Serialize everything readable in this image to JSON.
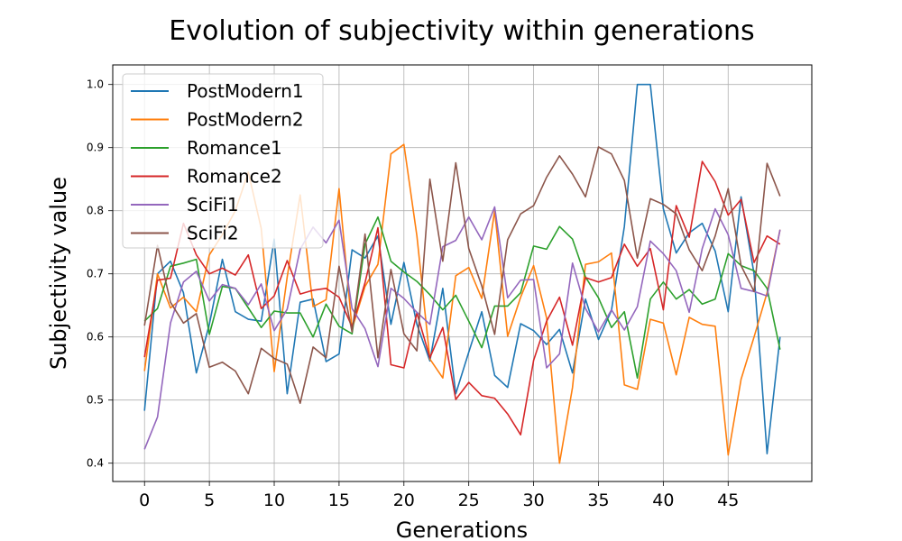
{
  "chart_data": {
    "type": "line",
    "title": "Evolution of subjectivity within generations",
    "xlabel": "Generations",
    "ylabel": "Subjectivity value",
    "xlim": [
      -2.45,
      51.45
    ],
    "ylim": [
      0.371,
      1.031
    ],
    "xticks": [
      0,
      5,
      10,
      15,
      20,
      25,
      30,
      35,
      40,
      45
    ],
    "xtick_labels": [
      "0",
      "5",
      "10",
      "15",
      "20",
      "25",
      "30",
      "35",
      "40",
      "45"
    ],
    "yticks": [
      0.4,
      0.5,
      0.6,
      0.7,
      0.8,
      0.9,
      1.0
    ],
    "ytick_labels": [
      "0.4",
      "0.5",
      "0.6",
      "0.7",
      "0.8",
      "0.9",
      "1.0"
    ],
    "grid": true,
    "legend_position": "upper-left",
    "x": [
      0,
      1,
      2,
      3,
      4,
      5,
      6,
      7,
      8,
      9,
      10,
      11,
      12,
      13,
      14,
      15,
      16,
      17,
      18,
      19,
      20,
      21,
      22,
      23,
      24,
      25,
      26,
      27,
      28,
      29,
      30,
      31,
      32,
      33,
      34,
      35,
      36,
      37,
      38,
      39,
      40,
      41,
      42,
      43,
      44,
      45,
      46,
      47,
      48,
      49
    ],
    "series": [
      {
        "name": "PostModern1",
        "color": "#1f77b4",
        "values": [
          0.483,
          0.7,
          0.72,
          0.67,
          0.543,
          0.62,
          0.723,
          0.64,
          0.628,
          0.625,
          0.755,
          0.51,
          0.655,
          0.66,
          0.561,
          0.573,
          0.738,
          0.725,
          0.76,
          0.62,
          0.718,
          0.62,
          0.562,
          0.677,
          0.51,
          0.576,
          0.64,
          0.539,
          0.52,
          0.621,
          0.61,
          0.588,
          0.612,
          0.543,
          0.66,
          0.596,
          0.642,
          0.775,
          1.0,
          1.0,
          0.803,
          0.733,
          0.765,
          0.78,
          0.736,
          0.64,
          0.822,
          0.7,
          0.415,
          0.6
        ]
      },
      {
        "name": "PostModern2",
        "color": "#ff7f0e",
        "values": [
          0.546,
          0.7,
          0.646,
          0.663,
          0.64,
          0.73,
          0.762,
          0.8,
          0.861,
          0.772,
          0.545,
          0.695,
          0.825,
          0.648,
          0.659,
          0.835,
          0.613,
          0.68,
          0.715,
          0.89,
          0.905,
          0.76,
          0.565,
          0.535,
          0.697,
          0.71,
          0.661,
          0.8,
          0.601,
          0.663,
          0.713,
          0.63,
          0.4,
          0.52,
          0.715,
          0.719,
          0.733,
          0.524,
          0.517,
          0.628,
          0.622,
          0.54,
          0.631,
          0.62,
          0.617,
          0.413,
          0.533,
          0.6,
          0.67,
          0.77
        ]
      },
      {
        "name": "Romance1",
        "color": "#2ca02c",
        "values": [
          0.625,
          0.645,
          0.712,
          0.717,
          0.723,
          0.604,
          0.68,
          0.677,
          0.646,
          0.615,
          0.641,
          0.638,
          0.638,
          0.6,
          0.652,
          0.617,
          0.605,
          0.747,
          0.79,
          0.72,
          0.703,
          0.688,
          0.667,
          0.643,
          0.666,
          0.625,
          0.583,
          0.649,
          0.649,
          0.67,
          0.744,
          0.739,
          0.775,
          0.755,
          0.695,
          0.662,
          0.615,
          0.64,
          0.535,
          0.66,
          0.687,
          0.66,
          0.675,
          0.652,
          0.66,
          0.732,
          0.713,
          0.705,
          0.677,
          0.58
        ]
      },
      {
        "name": "Romance2",
        "color": "#d62728",
        "values": [
          0.568,
          0.69,
          0.693,
          0.78,
          0.73,
          0.7,
          0.709,
          0.698,
          0.73,
          0.645,
          0.665,
          0.721,
          0.668,
          0.674,
          0.677,
          0.663,
          0.616,
          0.686,
          0.773,
          0.556,
          0.551,
          0.638,
          0.567,
          0.615,
          0.501,
          0.528,
          0.507,
          0.503,
          0.478,
          0.445,
          0.563,
          0.625,
          0.663,
          0.587,
          0.694,
          0.687,
          0.694,
          0.747,
          0.712,
          0.74,
          0.643,
          0.808,
          0.758,
          0.878,
          0.846,
          0.793,
          0.818,
          0.718,
          0.76,
          0.747
        ]
      },
      {
        "name": "SciFi1",
        "color": "#9467bd",
        "values": [
          0.422,
          0.473,
          0.622,
          0.687,
          0.704,
          0.657,
          0.683,
          0.677,
          0.651,
          0.684,
          0.61,
          0.644,
          0.739,
          0.774,
          0.749,
          0.785,
          0.645,
          0.613,
          0.553,
          0.677,
          0.661,
          0.639,
          0.62,
          0.743,
          0.753,
          0.79,
          0.754,
          0.806,
          0.662,
          0.69,
          0.691,
          0.551,
          0.573,
          0.717,
          0.645,
          0.608,
          0.643,
          0.611,
          0.648,
          0.752,
          0.732,
          0.705,
          0.639,
          0.74,
          0.803,
          0.762,
          0.677,
          0.672,
          0.665,
          0.77
        ]
      },
      {
        "name": "SciFi2",
        "color": "#8c564b",
        "values": [
          0.618,
          0.745,
          0.655,
          0.622,
          0.637,
          0.552,
          0.56,
          0.546,
          0.51,
          0.582,
          0.566,
          0.557,
          0.495,
          0.584,
          0.567,
          0.712,
          0.608,
          0.763,
          0.567,
          0.707,
          0.605,
          0.578,
          0.85,
          0.72,
          0.876,
          0.74,
          0.681,
          0.604,
          0.754,
          0.795,
          0.808,
          0.853,
          0.887,
          0.858,
          0.822,
          0.901,
          0.89,
          0.848,
          0.725,
          0.819,
          0.81,
          0.795,
          0.738,
          0.705,
          0.76,
          0.835,
          0.713,
          0.672,
          0.875,
          0.823
        ]
      }
    ]
  }
}
